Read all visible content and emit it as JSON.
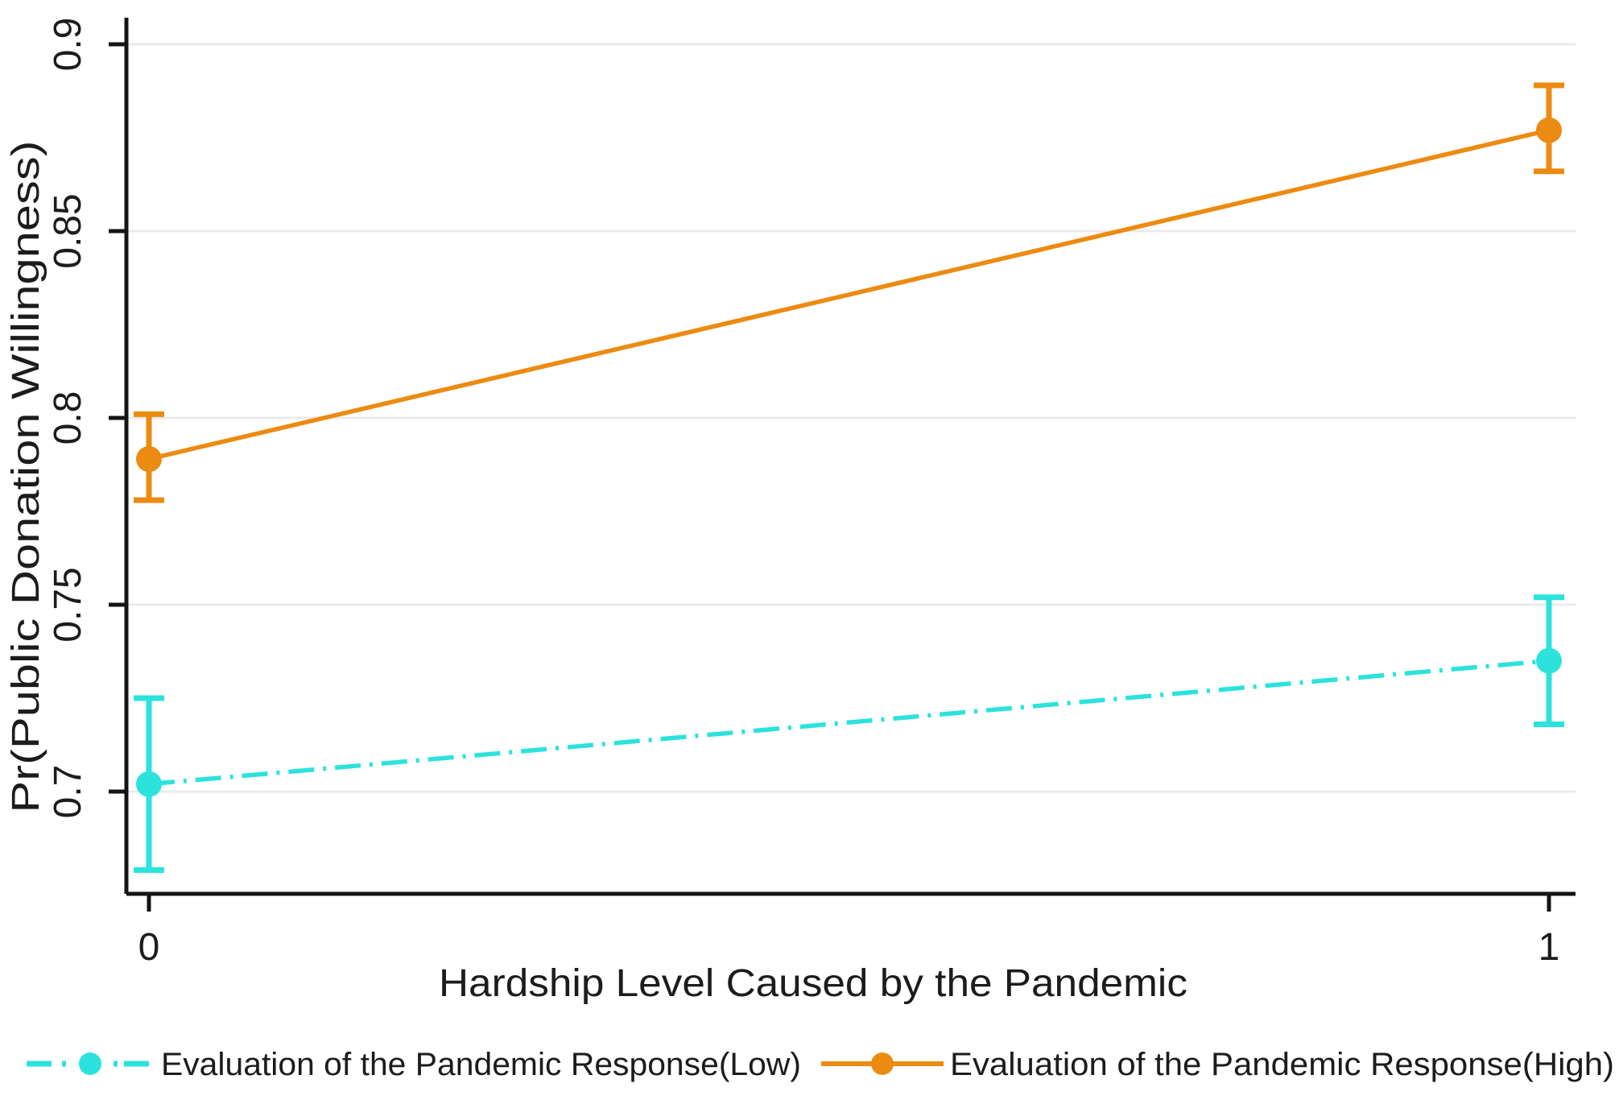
{
  "style": {
    "background": "#ffffff",
    "grid_color": "#ebebeb",
    "axis_color": "#141414",
    "text_color": "#1c1c1c"
  },
  "chart_data": {
    "type": "line",
    "title": "",
    "xlabel": "Hardship Level Caused by the Pandemic",
    "ylabel": "Pr(Public Donation Willingness)",
    "x": [
      0,
      1
    ],
    "x_tick_labels": [
      "0",
      "1"
    ],
    "y_ticks": [
      {
        "value": 0.7,
        "label": "0.7"
      },
      {
        "value": 0.75,
        "label": "0.75"
      },
      {
        "value": 0.8,
        "label": "0.8"
      },
      {
        "value": 0.85,
        "label": "0.85"
      },
      {
        "value": 0.9,
        "label": "0.9"
      }
    ],
    "ylim": [
      0.673,
      0.907
    ],
    "grid": "horizontal",
    "legend_position": "bottom",
    "series": [
      {
        "name": "Evaluation of the Pandemic Response(Low)",
        "color": "#2BE3DC",
        "line_style": "dash-dot",
        "marker": "circle",
        "values": [
          0.702,
          0.735
        ],
        "ci_low": [
          0.679,
          0.718
        ],
        "ci_high": [
          0.725,
          0.752
        ]
      },
      {
        "name": "Evaluation of the Pandemic Response(High)",
        "color": "#EC8B12",
        "line_style": "solid",
        "marker": "circle",
        "values": [
          0.789,
          0.877
        ],
        "ci_low": [
          0.778,
          0.866
        ],
        "ci_high": [
          0.801,
          0.889
        ]
      }
    ]
  }
}
